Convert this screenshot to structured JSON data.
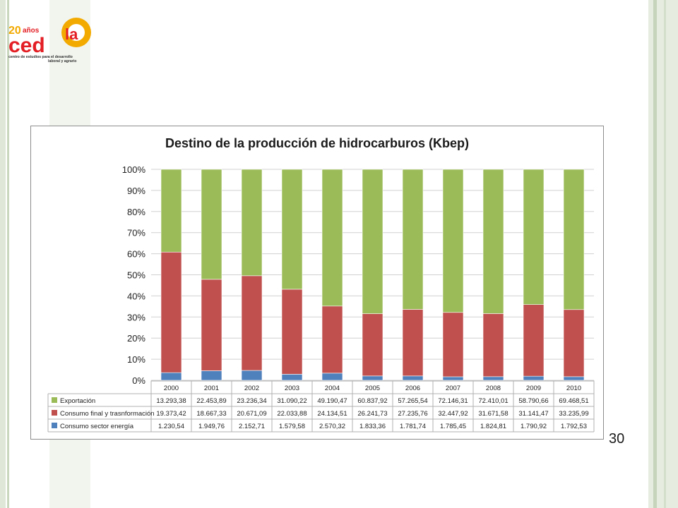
{
  "slide": {
    "page_number": "30",
    "logo": {
      "years": "20",
      "years_word": "años",
      "brand": "ced",
      "anniversary": "la",
      "tagline_1": "centro de estudios para el desarrollo",
      "tagline_2": "laboral y agrario"
    }
  },
  "colors": {
    "export": "#9bbb59",
    "consumo_final": "#c0504d",
    "consumo_energia": "#4f81bd",
    "stripe_light": "#e8eee2",
    "stripe_mid": "#d4dfcb"
  },
  "chart_data": {
    "type": "bar",
    "stacking": "percent",
    "title": "Destino de la producción de hidrocarburos (Kbep)",
    "categories": [
      "2000",
      "2001",
      "2002",
      "2003",
      "2004",
      "2005",
      "2006",
      "2007",
      "2008",
      "2009",
      "2010"
    ],
    "y_ticks": [
      "0%",
      "10%",
      "20%",
      "30%",
      "40%",
      "50%",
      "60%",
      "70%",
      "80%",
      "90%",
      "100%"
    ],
    "ylim": [
      0,
      100
    ],
    "grid": true,
    "legend_placement": "data-table-left",
    "series": [
      {
        "key": "exp",
        "name": "Exportación",
        "values": [
          13293.38,
          22453.89,
          23236.34,
          31090.22,
          49190.47,
          60837.92,
          57265.54,
          72146.31,
          72410.01,
          58790.66,
          69468.51
        ],
        "labels": [
          "13.293,38",
          "22.453,89",
          "23.236,34",
          "31.090,22",
          "49.190,47",
          "60.837,92",
          "57.265,54",
          "72.146,31",
          "72.410,01",
          "58.790,66",
          "69.468,51"
        ]
      },
      {
        "key": "cf",
        "name": "Consumo final y trasnformación",
        "values": [
          19373.42,
          18667.33,
          20671.09,
          22033.88,
          24134.51,
          26241.73,
          27235.76,
          32447.92,
          31671.58,
          31141.47,
          33235.99
        ],
        "labels": [
          "19.373,42",
          "18.667,33",
          "20.671,09",
          "22.033,88",
          "24.134,51",
          "26.241,73",
          "27.235,76",
          "32.447,92",
          "31.671,58",
          "31.141,47",
          "33.235,99"
        ]
      },
      {
        "key": "ce",
        "name": "Consumo sector energía",
        "values": [
          1230.54,
          1949.76,
          2152.71,
          1579.58,
          2570.32,
          1833.36,
          1781.74,
          1785.45,
          1824.81,
          1790.92,
          1792.53
        ],
        "labels": [
          "1.230,54",
          "1.949,76",
          "2.152,71",
          "1.579,58",
          "2.570,32",
          "1.833,36",
          "1.781,74",
          "1.785,45",
          "1.824,81",
          "1.790,92",
          "1.792,53"
        ]
      }
    ]
  }
}
